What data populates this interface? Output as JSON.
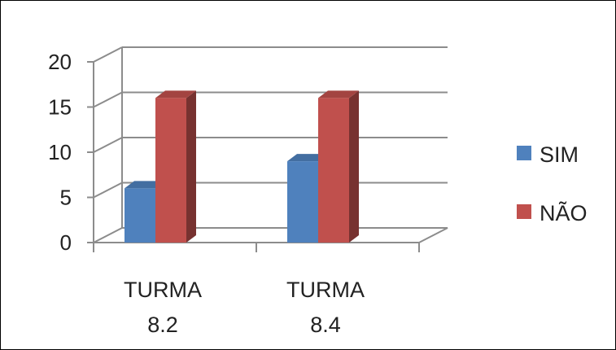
{
  "chart_data": {
    "type": "bar",
    "categories": [
      "TURMA 8.2",
      "TURMA 8.4"
    ],
    "category_lines": [
      [
        "TURMA",
        "8.2"
      ],
      [
        "TURMA",
        "8.4"
      ]
    ],
    "series": [
      {
        "name": "SIM",
        "values": [
          6,
          9
        ],
        "color": "#4f81bd"
      },
      {
        "name": "NÃO",
        "values": [
          16,
          16
        ],
        "color": "#c0504d"
      }
    ],
    "ylim": [
      0,
      20
    ],
    "yticks": [
      "0",
      "5",
      "10",
      "15",
      "20"
    ],
    "grid": true,
    "legend_position": "right",
    "title": "",
    "xlabel": "",
    "ylabel": ""
  }
}
